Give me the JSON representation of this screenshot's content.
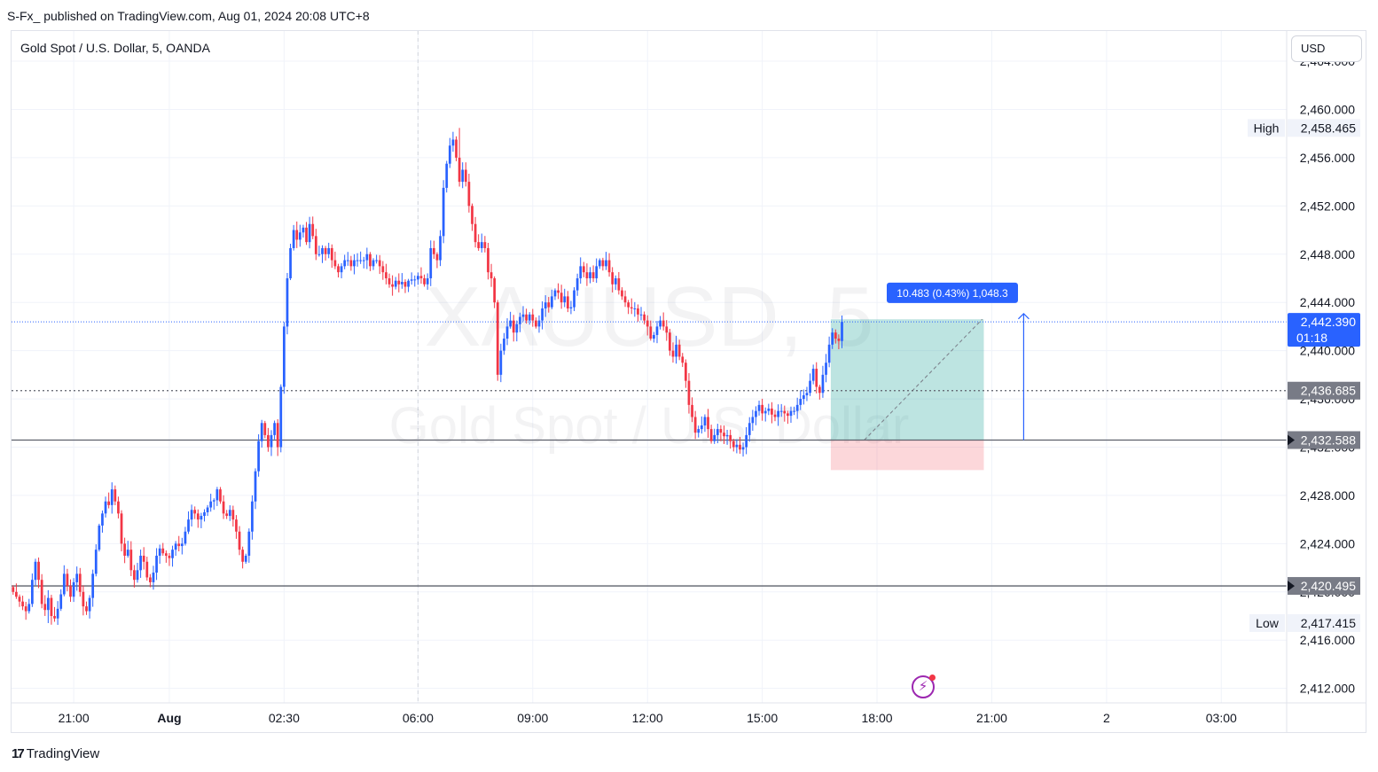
{
  "header": {
    "published_text": "S-Fx_ published on TradingView.com, Aug 01, 2024 20:08 UTC+8"
  },
  "legend": {
    "symbol_title": "Gold Spot / U.S. Dollar, 5, OANDA"
  },
  "toolbar": {
    "currency_label": "USD"
  },
  "footer": {
    "brand_mark": "17",
    "brand_label": "TradingView"
  },
  "alert": {
    "icon": "lightning-alert-icon"
  },
  "colors": {
    "up": "#2962ff",
    "down": "#f23645",
    "grid": "#f0f3fa",
    "level_line": "#5d606b",
    "current_price_line": "#2962ff",
    "profit_zone": "#26a69a",
    "loss_zone": "#f23645",
    "label_dark": "#787b86"
  },
  "chart_data": {
    "type": "candlestick",
    "symbol": "XAUUSD",
    "timeframe": "5",
    "watermark_symbol": "XAUUSD, 5",
    "watermark_name": "Gold Spot / U.S. Dollar",
    "x_tick_labels": [
      {
        "label": "21:00",
        "bar": 19
      },
      {
        "label": "Aug",
        "bar": 49
      },
      {
        "label": "02:30",
        "bar": 85
      },
      {
        "label": "06:00",
        "bar": 127
      },
      {
        "label": "09:00",
        "bar": 163
      },
      {
        "label": "12:00",
        "bar": 199
      },
      {
        "label": "15:00",
        "bar": 235
      },
      {
        "label": "18:00",
        "bar": 271
      },
      {
        "label": "21:00",
        "bar": 307
      },
      {
        "label": "2",
        "bar": 343
      },
      {
        "label": "03:00",
        "bar": 379
      }
    ],
    "y_ticks": [
      2412,
      2416,
      2420,
      2424,
      2428,
      2432,
      2436,
      2440,
      2444,
      2448,
      2452,
      2456,
      2460,
      2464
    ],
    "y_tick_labels": [
      "2,412.000",
      "2,416.000",
      "2,420.000",
      "2,424.000",
      "2,428.000",
      "2,432.000",
      "2,436.000",
      "2,440.000",
      "2,444.000",
      "2,448.000",
      "2,452.000",
      "2,456.000",
      "2,460.000",
      "2,464.000"
    ],
    "ylim": [
      2410.8,
      2466.5
    ],
    "bar_count_visible": 400,
    "session_break_bars": [
      127
    ],
    "closes": [
      2420.0,
      2419.6,
      2419.2,
      2418.8,
      2418.4,
      2419.0,
      2421.0,
      2422.5,
      2421.0,
      2419.0,
      2418.5,
      2419.5,
      2418.0,
      2417.8,
      2418.6,
      2419.8,
      2421.5,
      2420.5,
      2419.6,
      2420.8,
      2421.5,
      2420.0,
      2418.8,
      2418.4,
      2419.5,
      2421.5,
      2423.5,
      2425.5,
      2426.5,
      2427.5,
      2427.2,
      2428.5,
      2427.5,
      2426.5,
      2424.0,
      2423.0,
      2423.5,
      2421.8,
      2421.0,
      2421.8,
      2423.0,
      2422.5,
      2421.2,
      2420.8,
      2421.6,
      2423.0,
      2423.6,
      2423.2,
      2423.0,
      2422.8,
      2423.5,
      2424.0,
      2423.8,
      2424.0,
      2425.0,
      2426.0,
      2426.8,
      2426.5,
      2426.0,
      2426.3,
      2426.6,
      2427.0,
      2427.5,
      2427.6,
      2428.5,
      2427.5,
      2426.5,
      2426.3,
      2426.8,
      2426.0,
      2425.0,
      2423.5,
      2422.5,
      2423.0,
      2425.0,
      2427.5,
      2430.0,
      2432.5,
      2434.0,
      2433.0,
      2432.0,
      2433.0,
      2434.0,
      2432.0,
      2437.0,
      2442.0,
      2446.0,
      2448.5,
      2450.0,
      2449.2,
      2449.8,
      2450.2,
      2449.0,
      2450.5,
      2449.5,
      2448.0,
      2448.0,
      2448.5,
      2448.0,
      2448.5,
      2447.5,
      2447.0,
      2446.5,
      2447.0,
      2447.5,
      2447.5,
      2447.0,
      2447.5,
      2447.5,
      2447.5,
      2447.5,
      2448.0,
      2447.0,
      2447.5,
      2447.5,
      2447.0,
      2446.5,
      2446.0,
      2445.5,
      2445.3,
      2445.8,
      2445.5,
      2445.7,
      2445.3,
      2445.8,
      2445.9,
      2445.9,
      2446.2,
      2446.0,
      2445.5,
      2446.0,
      2448.5,
      2448.0,
      2447.5,
      2449.5,
      2453.5,
      2455.5,
      2457.0,
      2457.5,
      2456.0,
      2454.0,
      2455.0,
      2454.0,
      2452.0,
      2450.5,
      2449.0,
      2448.5,
      2449.0,
      2448.5,
      2446.5,
      2446.0,
      2444.0,
      2438.0,
      2440.0,
      2441.0,
      2442.0,
      2442.5,
      2441.5,
      2442.2,
      2442.8,
      2443.0,
      2442.5,
      2443.0,
      2442.5,
      2442.0,
      2442.5,
      2443.5,
      2444.0,
      2443.6,
      2444.5,
      2445.0,
      2444.8,
      2444.0,
      2444.5,
      2443.5,
      2443.6,
      2445.0,
      2446.0,
      2447.0,
      2446.5,
      2446.0,
      2446.5,
      2446.0,
      2447.0,
      2447.5,
      2447.0,
      2447.5,
      2446.5,
      2445.5,
      2446.0,
      2445.0,
      2444.5,
      2444.0,
      2443.6,
      2443.5,
      2443.5,
      2443.0,
      2443.0,
      2442.5,
      2442.0,
      2441.0,
      2441.3,
      2442.0,
      2442.5,
      2442.0,
      2441.5,
      2440.0,
      2439.5,
      2440.5,
      2439.5,
      2439.0,
      2437.5,
      2435.5,
      2434.5,
      2433.2,
      2433.5,
      2433.8,
      2434.5,
      2433.5,
      2432.5,
      2433.0,
      2433.5,
      2433.2,
      2432.9,
      2433.0,
      2432.5,
      2432.0,
      2432.2,
      2431.8,
      2432.0,
      2433.0,
      2434.0,
      2434.5,
      2435.0,
      2435.5,
      2434.8,
      2435.0,
      2435.2,
      2434.7,
      2434.5,
      2435.0,
      2435.0,
      2434.8,
      2434.6,
      2435.0,
      2435.0,
      2435.5,
      2436.0,
      2436.3,
      2436.5,
      2437.5,
      2438.5,
      2437.0,
      2436.5,
      2438.0,
      2439.0,
      2440.5,
      2441.5,
      2441.0,
      2440.8,
      2442.39
    ],
    "levels": [
      {
        "price_label": "2,458.465",
        "name": "High"
      },
      {
        "price_label": "2,442.390",
        "name": "current"
      },
      {
        "price_label": "2,436.685",
        "name": "dotted"
      },
      {
        "price_label": "2,432.588",
        "name": "solid"
      },
      {
        "price_label": "2,420.495",
        "name": "solid"
      },
      {
        "price_label": "2,417.415",
        "name": "Low"
      }
    ],
    "high_label": "High",
    "low_label": "Low",
    "price_values": {
      "high": 2458.465,
      "current": 2442.39,
      "dotted": 2436.685,
      "entry": 2432.588,
      "support": 2420.495,
      "low": 2417.415
    },
    "countdown": "01:18",
    "position": {
      "type": "long",
      "entry": 2432.588,
      "target": 2442.6,
      "stop": 2430.1,
      "start_bar": 257,
      "end_bar": 304
    },
    "measure": {
      "label": "10.483 (0.43%) 1,048.3",
      "from_price": 2432.588,
      "to_price": 2443.07,
      "bar": 317
    }
  }
}
